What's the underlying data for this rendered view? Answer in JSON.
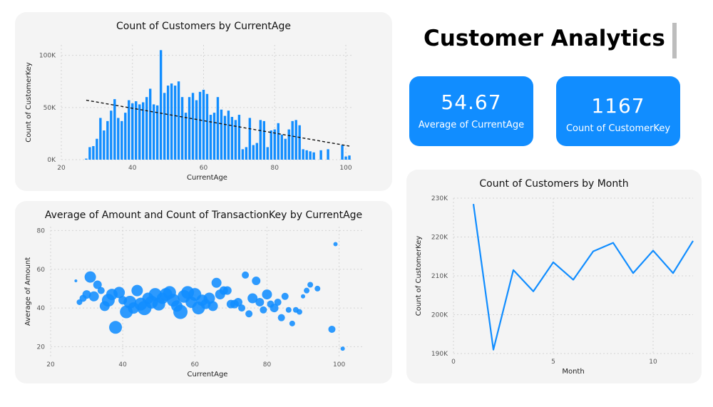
{
  "dashboard": {
    "title": "Customer Analytics"
  },
  "kpis": [
    {
      "value": "54.67",
      "label": "Average of CurrentAge"
    },
    {
      "value": "1167",
      "label": "Count of CustomerKey"
    }
  ],
  "colors": {
    "accent": "#118dff",
    "card_bg": "#f4f4f4",
    "trend": "#111111"
  },
  "chart_data": [
    {
      "type": "bar",
      "title": "Count of Customers by CurrentAge",
      "xlabel": "CurrentAge",
      "ylabel": "Count of CustomerKey",
      "x_ticks": [
        "20",
        "40",
        "60",
        "80",
        "100"
      ],
      "y_ticks": [
        "0K",
        "50K",
        "100K"
      ],
      "xlim": [
        20,
        102
      ],
      "ylim": [
        0,
        110000
      ],
      "grid": true,
      "trendline": {
        "style": "dashed",
        "start": [
          27,
          57000
        ],
        "end": [
          101,
          13000
        ]
      },
      "x": [
        27,
        28,
        29,
        30,
        31,
        32,
        33,
        34,
        35,
        36,
        37,
        38,
        39,
        40,
        41,
        42,
        43,
        44,
        45,
        46,
        47,
        48,
        49,
        50,
        51,
        52,
        53,
        54,
        55,
        56,
        57,
        58,
        59,
        60,
        61,
        62,
        63,
        64,
        65,
        66,
        67,
        68,
        69,
        70,
        71,
        72,
        73,
        74,
        75,
        76,
        77,
        78,
        79,
        80,
        81,
        82,
        83,
        84,
        85,
        86,
        87,
        88,
        89,
        90,
        91,
        93,
        95,
        99,
        100,
        101
      ],
      "values": [
        1000,
        12000,
        13000,
        20000,
        40000,
        28000,
        37000,
        47000,
        58000,
        40000,
        37000,
        45000,
        57000,
        54000,
        56000,
        53000,
        55000,
        60000,
        68000,
        53000,
        52000,
        105000,
        64000,
        71000,
        73000,
        71000,
        75000,
        60000,
        45000,
        60000,
        64000,
        57000,
        65000,
        67000,
        63000,
        43000,
        45000,
        60000,
        48000,
        42000,
        47000,
        41000,
        38000,
        43000,
        10000,
        12000,
        40000,
        14000,
        16000,
        38000,
        37000,
        12000,
        28000,
        29000,
        35000,
        24000,
        20000,
        29000,
        37000,
        38000,
        33000,
        10000,
        9000,
        8000,
        7000,
        9000,
        10000,
        14000,
        3000,
        4000
      ]
    },
    {
      "type": "scatter",
      "title": "Average of Amount and Count of TransactionKey by CurrentAge",
      "xlabel": "CurrentAge",
      "ylabel": "Average of Amount",
      "x_ticks": [
        "20",
        "40",
        "60",
        "80",
        "100"
      ],
      "y_ticks": [
        "20",
        "40",
        "60",
        "80"
      ],
      "xlim": [
        20,
        107
      ],
      "ylim": [
        15,
        82
      ],
      "grid": true,
      "points": [
        {
          "x": 27,
          "y": 54,
          "r": 2
        },
        {
          "x": 28,
          "y": 43,
          "r": 4
        },
        {
          "x": 29,
          "y": 45,
          "r": 5
        },
        {
          "x": 30,
          "y": 47,
          "r": 6
        },
        {
          "x": 31,
          "y": 56,
          "r": 8
        },
        {
          "x": 32,
          "y": 46,
          "r": 7
        },
        {
          "x": 33,
          "y": 52,
          "r": 6
        },
        {
          "x": 34,
          "y": 49,
          "r": 5
        },
        {
          "x": 35,
          "y": 41,
          "r": 7
        },
        {
          "x": 36,
          "y": 44,
          "r": 9
        },
        {
          "x": 37,
          "y": 47,
          "r": 8
        },
        {
          "x": 38,
          "y": 30,
          "r": 9
        },
        {
          "x": 39,
          "y": 48,
          "r": 8
        },
        {
          "x": 40,
          "y": 44,
          "r": 6
        },
        {
          "x": 41,
          "y": 38,
          "r": 9
        },
        {
          "x": 42,
          "y": 43,
          "r": 9
        },
        {
          "x": 43,
          "y": 40,
          "r": 8
        },
        {
          "x": 44,
          "y": 49,
          "r": 8
        },
        {
          "x": 45,
          "y": 42,
          "r": 9
        },
        {
          "x": 46,
          "y": 40,
          "r": 10
        },
        {
          "x": 47,
          "y": 45,
          "r": 8
        },
        {
          "x": 48,
          "y": 43,
          "r": 9
        },
        {
          "x": 49,
          "y": 47,
          "r": 9
        },
        {
          "x": 50,
          "y": 42,
          "r": 9
        },
        {
          "x": 51,
          "y": 45,
          "r": 8
        },
        {
          "x": 52,
          "y": 47,
          "r": 9
        },
        {
          "x": 53,
          "y": 48,
          "r": 9
        },
        {
          "x": 54,
          "y": 44,
          "r": 9
        },
        {
          "x": 55,
          "y": 41,
          "r": 8
        },
        {
          "x": 56,
          "y": 38,
          "r": 10
        },
        {
          "x": 57,
          "y": 46,
          "r": 9
        },
        {
          "x": 58,
          "y": 48,
          "r": 9
        },
        {
          "x": 59,
          "y": 43,
          "r": 8
        },
        {
          "x": 60,
          "y": 47,
          "r": 9
        },
        {
          "x": 61,
          "y": 40,
          "r": 9
        },
        {
          "x": 62,
          "y": 44,
          "r": 8
        },
        {
          "x": 63,
          "y": 42,
          "r": 7
        },
        {
          "x": 64,
          "y": 45,
          "r": 8
        },
        {
          "x": 65,
          "y": 41,
          "r": 7
        },
        {
          "x": 66,
          "y": 53,
          "r": 7
        },
        {
          "x": 67,
          "y": 47,
          "r": 7
        },
        {
          "x": 68,
          "y": 49,
          "r": 6
        },
        {
          "x": 69,
          "y": 49,
          "r": 6
        },
        {
          "x": 70,
          "y": 42,
          "r": 6
        },
        {
          "x": 71,
          "y": 42,
          "r": 6
        },
        {
          "x": 72,
          "y": 43,
          "r": 6
        },
        {
          "x": 73,
          "y": 40,
          "r": 5
        },
        {
          "x": 74,
          "y": 57,
          "r": 5
        },
        {
          "x": 75,
          "y": 37,
          "r": 5
        },
        {
          "x": 76,
          "y": 45,
          "r": 7
        },
        {
          "x": 77,
          "y": 54,
          "r": 6
        },
        {
          "x": 78,
          "y": 43,
          "r": 6
        },
        {
          "x": 79,
          "y": 39,
          "r": 5
        },
        {
          "x": 80,
          "y": 47,
          "r": 7
        },
        {
          "x": 81,
          "y": 42,
          "r": 5
        },
        {
          "x": 82,
          "y": 40,
          "r": 6
        },
        {
          "x": 83,
          "y": 43,
          "r": 5
        },
        {
          "x": 84,
          "y": 35,
          "r": 5
        },
        {
          "x": 85,
          "y": 46,
          "r": 5
        },
        {
          "x": 86,
          "y": 39,
          "r": 4
        },
        {
          "x": 87,
          "y": 32,
          "r": 4
        },
        {
          "x": 88,
          "y": 39,
          "r": 4
        },
        {
          "x": 89,
          "y": 38,
          "r": 4
        },
        {
          "x": 90,
          "y": 46,
          "r": 3
        },
        {
          "x": 91,
          "y": 49,
          "r": 4
        },
        {
          "x": 92,
          "y": 52,
          "r": 4
        },
        {
          "x": 94,
          "y": 50,
          "r": 4
        },
        {
          "x": 98,
          "y": 29,
          "r": 5
        },
        {
          "x": 99,
          "y": 73,
          "r": 3
        },
        {
          "x": 101,
          "y": 19,
          "r": 3
        }
      ]
    },
    {
      "type": "line",
      "title": "Count of Customers by Month",
      "xlabel": "Month",
      "ylabel": "Count of CustomerKey",
      "x_ticks": [
        "0",
        "5",
        "10"
      ],
      "y_ticks": [
        "190K",
        "200K",
        "210K",
        "220K",
        "230K"
      ],
      "xlim": [
        0,
        12
      ],
      "ylim": [
        190000,
        230000
      ],
      "grid": true,
      "x": [
        1,
        2,
        3,
        4,
        5,
        6,
        7,
        8,
        9,
        10,
        11,
        12
      ],
      "values": [
        228500,
        191000,
        211500,
        206000,
        213500,
        209000,
        216300,
        218500,
        210700,
        216500,
        210700,
        219000
      ]
    }
  ]
}
